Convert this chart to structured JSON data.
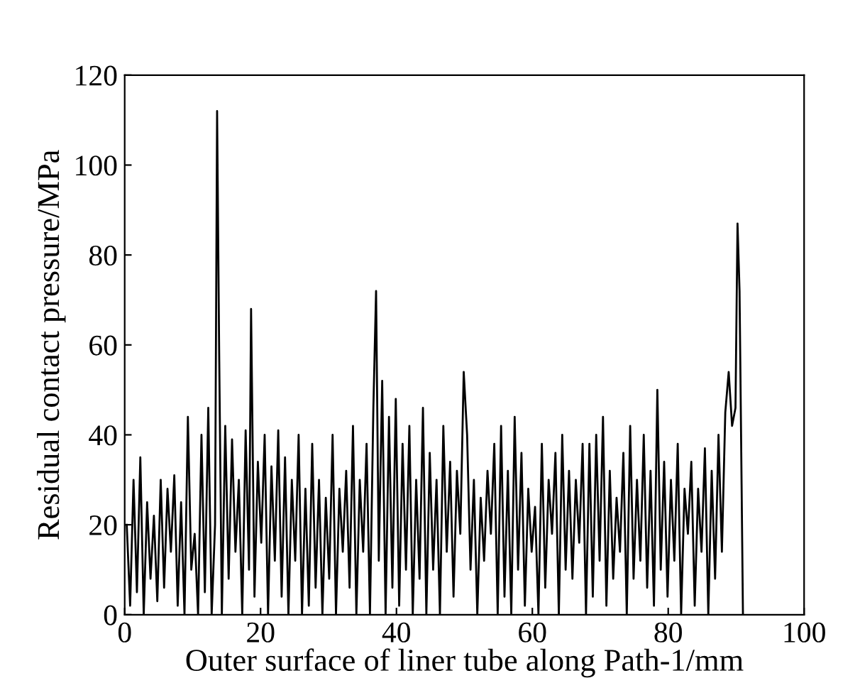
{
  "chart_data": {
    "type": "line",
    "xlabel": "Outer surface of liner tube along Path-1/mm",
    "ylabel": "Residual contact pressure/MPa",
    "xlim": [
      0,
      100
    ],
    "ylim": [
      0,
      120
    ],
    "xticks": [
      0,
      20,
      40,
      60,
      80,
      100
    ],
    "yticks": [
      0,
      20,
      40,
      60,
      80,
      100,
      120
    ],
    "grid": false,
    "legend": false,
    "marker": "none",
    "line_style": "solid",
    "series": [
      {
        "color": "#000000",
        "x": [
          0.3,
          0.8,
          1.3,
          1.8,
          2.3,
          2.8,
          3.3,
          3.8,
          4.3,
          4.8,
          5.3,
          5.8,
          6.3,
          6.8,
          7.3,
          7.8,
          8.3,
          8.8,
          9.3,
          9.8,
          10.3,
          10.8,
          11.3,
          11.8,
          12.3,
          12.8,
          13.3,
          13.6,
          13.9,
          14.3,
          14.8,
          15.3,
          15.8,
          16.3,
          16.8,
          17.3,
          17.8,
          18.3,
          18.6,
          19.1,
          19.6,
          20.1,
          20.6,
          21.1,
          21.6,
          22.1,
          22.6,
          23.1,
          23.6,
          24.1,
          24.6,
          25.1,
          25.6,
          26.1,
          26.6,
          27.1,
          27.6,
          28.1,
          28.6,
          29.1,
          29.6,
          30.1,
          30.6,
          31.1,
          31.6,
          32.1,
          32.6,
          33.1,
          33.6,
          34.1,
          34.6,
          35.1,
          35.6,
          36.1,
          36.6,
          37.0,
          37.4,
          37.9,
          38.4,
          38.9,
          39.4,
          39.9,
          40.4,
          40.9,
          41.4,
          41.9,
          42.4,
          42.9,
          43.4,
          43.9,
          44.4,
          44.9,
          45.4,
          45.9,
          46.4,
          46.9,
          47.4,
          47.9,
          48.4,
          48.9,
          49.4,
          49.9,
          50.4,
          50.9,
          51.4,
          51.9,
          52.4,
          52.9,
          53.4,
          53.9,
          54.4,
          54.9,
          55.4,
          55.9,
          56.4,
          56.9,
          57.4,
          57.9,
          58.4,
          58.9,
          59.4,
          59.9,
          60.4,
          60.9,
          61.4,
          61.9,
          62.4,
          62.9,
          63.4,
          63.9,
          64.4,
          64.9,
          65.4,
          65.9,
          66.4,
          66.9,
          67.4,
          67.9,
          68.4,
          68.9,
          69.4,
          69.9,
          70.4,
          70.9,
          71.4,
          71.9,
          72.4,
          72.9,
          73.4,
          73.9,
          74.4,
          74.9,
          75.4,
          75.9,
          76.4,
          76.9,
          77.4,
          77.9,
          78.4,
          78.9,
          79.4,
          79.9,
          80.4,
          80.9,
          81.4,
          81.9,
          82.4,
          82.9,
          83.4,
          83.9,
          84.4,
          84.9,
          85.4,
          85.9,
          86.4,
          86.9,
          87.4,
          87.9,
          88.4,
          88.9,
          89.4,
          89.9,
          90.2,
          90.5,
          90.8,
          91.0
        ],
        "values": [
          20,
          2,
          30,
          5,
          35,
          0,
          25,
          8,
          22,
          3,
          30,
          6,
          28,
          14,
          31,
          2,
          25,
          0,
          44,
          10,
          18,
          0,
          40,
          5,
          46,
          0,
          20,
          112,
          59,
          0,
          42,
          8,
          39,
          14,
          30,
          0,
          41,
          10,
          68,
          4,
          34,
          16,
          40,
          0,
          33,
          12,
          41,
          4,
          35,
          0,
          30,
          12,
          40,
          0,
          28,
          2,
          38,
          6,
          30,
          0,
          26,
          8,
          40,
          0,
          28,
          14,
          32,
          6,
          42,
          0,
          30,
          14,
          38,
          0,
          46,
          72,
          12,
          52,
          0,
          44,
          6,
          48,
          2,
          38,
          10,
          42,
          0,
          30,
          8,
          46,
          0,
          36,
          10,
          30,
          0,
          42,
          14,
          34,
          4,
          32,
          18,
          54,
          40,
          10,
          30,
          0,
          26,
          12,
          32,
          18,
          38,
          0,
          42,
          4,
          32,
          0,
          44,
          10,
          36,
          2,
          28,
          14,
          24,
          0,
          38,
          6,
          30,
          18,
          36,
          0,
          40,
          10,
          32,
          8,
          30,
          16,
          38,
          0,
          38,
          4,
          40,
          12,
          44,
          2,
          32,
          8,
          26,
          14,
          36,
          0,
          42,
          8,
          30,
          12,
          40,
          6,
          32,
          2,
          50,
          10,
          34,
          4,
          30,
          12,
          38,
          0,
          28,
          18,
          34,
          2,
          28,
          14,
          37,
          0,
          32,
          8,
          40,
          14,
          45,
          54,
          42,
          46,
          87,
          72,
          29,
          0
        ]
      }
    ]
  }
}
